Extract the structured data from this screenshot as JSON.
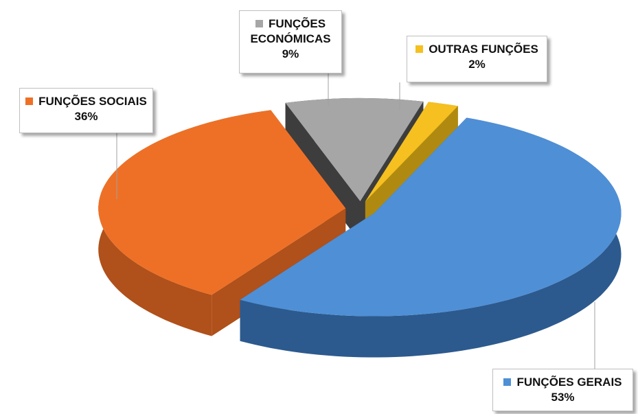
{
  "chart_data": {
    "type": "pie",
    "depth3d": true,
    "categories": [
      "FUNÇÕES GERAIS",
      "FUNÇÕES SOCIAIS",
      "FUNÇÕES ECONÓMICAS",
      "OUTRAS FUNÇÕES"
    ],
    "values": [
      53,
      36,
      9,
      2
    ],
    "value_labels": [
      "53%",
      "36%",
      "9%",
      "2%"
    ],
    "colors": [
      "#4f8fd6",
      "#ee7026",
      "#a6a6a6",
      "#f5c020"
    ],
    "side_colors": [
      "#2c5a8e",
      "#b0501a",
      "#3d3d3d",
      "#b08a10"
    ]
  }
}
